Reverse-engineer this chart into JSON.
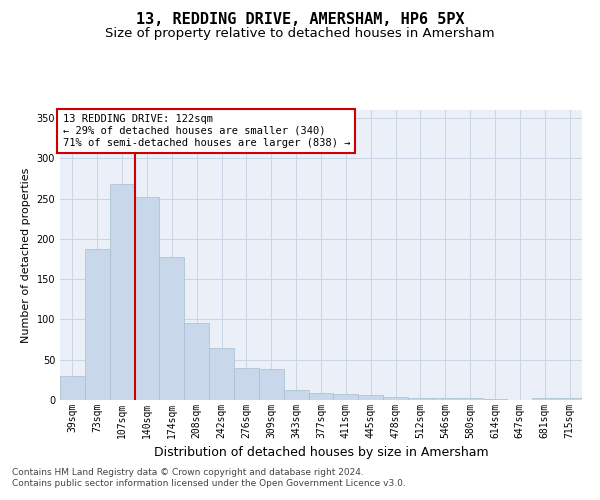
{
  "title": "13, REDDING DRIVE, AMERSHAM, HP6 5PX",
  "subtitle": "Size of property relative to detached houses in Amersham",
  "xlabel": "Distribution of detached houses by size in Amersham",
  "ylabel": "Number of detached properties",
  "bar_labels": [
    "39sqm",
    "73sqm",
    "107sqm",
    "140sqm",
    "174sqm",
    "208sqm",
    "242sqm",
    "276sqm",
    "309sqm",
    "343sqm",
    "377sqm",
    "411sqm",
    "445sqm",
    "478sqm",
    "512sqm",
    "546sqm",
    "580sqm",
    "614sqm",
    "647sqm",
    "681sqm",
    "715sqm"
  ],
  "bar_values": [
    30,
    187,
    268,
    252,
    178,
    95,
    65,
    40,
    38,
    12,
    9,
    8,
    6,
    4,
    3,
    3,
    2,
    1,
    0,
    3,
    2
  ],
  "bar_color": "#c8d8ea",
  "bar_edge_color": "#a8bece",
  "redline_x": 2.5,
  "annotation_line1": "13 REDDING DRIVE: 122sqm",
  "annotation_line2": "← 29% of detached houses are smaller (340)",
  "annotation_line3": "71% of semi-detached houses are larger (838) →",
  "annotation_box_color": "#ffffff",
  "annotation_box_edge": "#cc0000",
  "redline_color": "#cc0000",
  "grid_color": "#c8d4e4",
  "background_color": "#eaeff8",
  "ylim": [
    0,
    360
  ],
  "yticks": [
    0,
    50,
    100,
    150,
    200,
    250,
    300,
    350
  ],
  "footer_line1": "Contains HM Land Registry data © Crown copyright and database right 2024.",
  "footer_line2": "Contains public sector information licensed under the Open Government Licence v3.0.",
  "title_fontsize": 11,
  "subtitle_fontsize": 9.5,
  "xlabel_fontsize": 9,
  "ylabel_fontsize": 8,
  "tick_fontsize": 7,
  "footer_fontsize": 6.5,
  "annot_fontsize": 7.5
}
